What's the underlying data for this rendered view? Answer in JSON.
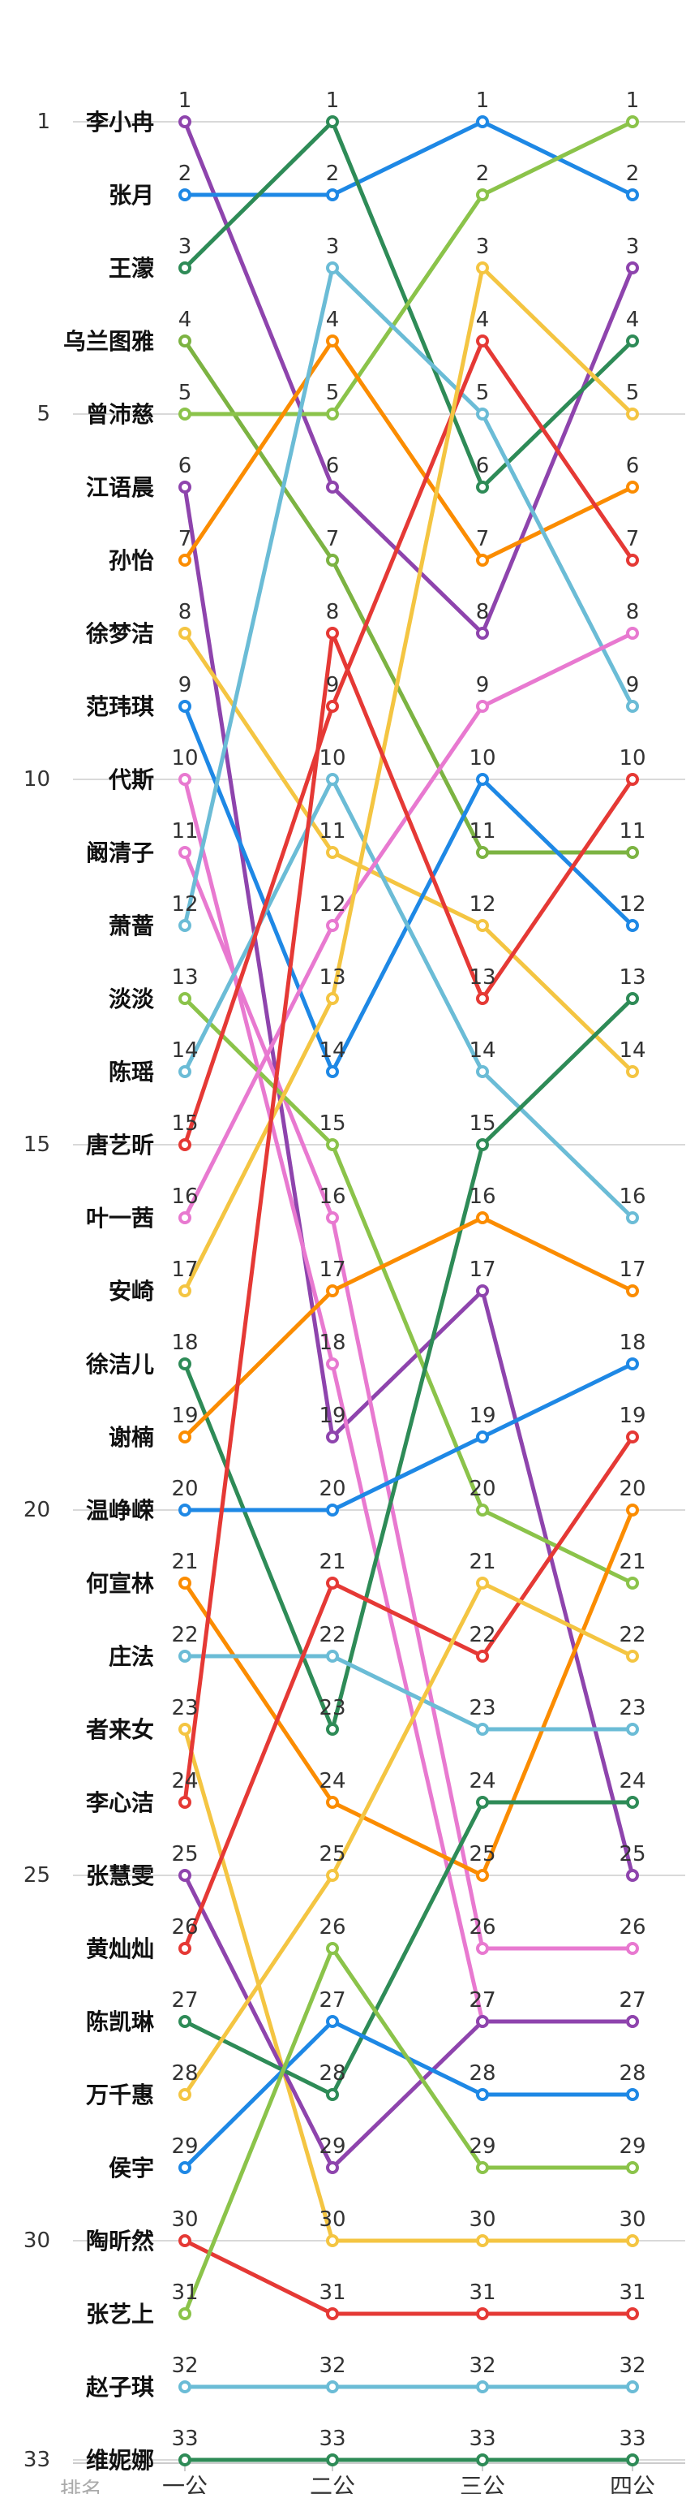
{
  "chart_data": {
    "type": "line",
    "xlabel": "排名",
    "categories": [
      "一公",
      "二公",
      "三公",
      "四公"
    ],
    "y_ticks": [
      1,
      5,
      10,
      15,
      20,
      25,
      30,
      33
    ],
    "ylim": [
      1,
      33
    ],
    "y_inverted": true,
    "grid": true,
    "palette": [
      "#1e88e5",
      "#43a047",
      "#2e8b57",
      "#8bc34a",
      "#7cb342",
      "#e53935",
      "#fb8c00",
      "#f4c542",
      "#6bbcd6",
      "#e879d0",
      "#8e44ad"
    ],
    "series": [
      {
        "name": "李小冉",
        "values": [
          1,
          6,
          8,
          3
        ],
        "color": "#8e44ad"
      },
      {
        "name": "张月",
        "values": [
          2,
          2,
          1,
          2
        ],
        "color": "#1e88e5"
      },
      {
        "name": "王濛",
        "values": [
          3,
          1,
          6,
          4
        ],
        "color": "#2e8b57"
      },
      {
        "name": "乌兰图雅",
        "values": [
          4,
          7,
          11,
          11
        ],
        "color": "#7cb342"
      },
      {
        "name": "曾沛慈",
        "values": [
          5,
          5,
          2,
          1
        ],
        "color": "#8bc34a"
      },
      {
        "name": "江语晨",
        "values": [
          6,
          19,
          17,
          25
        ],
        "color": "#8e44ad"
      },
      {
        "name": "孙怡",
        "values": [
          7,
          4,
          7,
          6
        ],
        "color": "#fb8c00"
      },
      {
        "name": "徐梦洁",
        "values": [
          8,
          11,
          12,
          14
        ],
        "color": "#f4c542"
      },
      {
        "name": "范玮琪",
        "values": [
          9,
          14,
          10,
          12
        ],
        "color": "#1e88e5"
      },
      {
        "name": "代斯",
        "values": [
          10,
          18,
          27,
          27
        ],
        "color": "#e879d0"
      },
      {
        "name": "阚清子",
        "values": [
          11,
          16,
          26,
          26
        ],
        "color": "#e879d0"
      },
      {
        "name": "萧蔷",
        "values": [
          12,
          3,
          5,
          9
        ],
        "color": "#6bbcd6"
      },
      {
        "name": "淡淡",
        "values": [
          13,
          15,
          20,
          21
        ],
        "color": "#8bc34a"
      },
      {
        "name": "陈瑶",
        "values": [
          14,
          10,
          14,
          16
        ],
        "color": "#6bbcd6"
      },
      {
        "name": "唐艺昕",
        "values": [
          15,
          9,
          4,
          7
        ],
        "color": "#e53935"
      },
      {
        "name": "叶一茜",
        "values": [
          16,
          12,
          9,
          8
        ],
        "color": "#e879d0"
      },
      {
        "name": "安崎",
        "values": [
          17,
          13,
          3,
          5
        ],
        "color": "#f4c542"
      },
      {
        "name": "徐洁儿",
        "values": [
          18,
          23,
          15,
          13
        ],
        "color": "#2e8b57"
      },
      {
        "name": "谢楠",
        "values": [
          19,
          17,
          16,
          17
        ],
        "color": "#fb8c00"
      },
      {
        "name": "温峥嵘",
        "values": [
          20,
          20,
          19,
          18
        ],
        "color": "#1e88e5"
      },
      {
        "name": "何宣林",
        "values": [
          21,
          24,
          25,
          20
        ],
        "color": "#fb8c00"
      },
      {
        "name": "庄法",
        "values": [
          22,
          22,
          23,
          23
        ],
        "color": "#6bbcd6"
      },
      {
        "name": "者来女",
        "values": [
          23,
          30,
          30,
          30
        ],
        "color": "#f4c542"
      },
      {
        "name": "李心洁",
        "values": [
          24,
          8,
          13,
          10
        ],
        "color": "#e53935"
      },
      {
        "name": "张慧雯",
        "values": [
          25,
          29,
          27,
          27
        ],
        "color": "#8e44ad"
      },
      {
        "name": "黄灿灿",
        "values": [
          26,
          21,
          22,
          19
        ],
        "color": "#e53935"
      },
      {
        "name": "陈凯琳",
        "values": [
          27,
          28,
          24,
          24
        ],
        "color": "#2e8b57"
      },
      {
        "name": "万千惠",
        "values": [
          28,
          25,
          21,
          22
        ],
        "color": "#f4c542"
      },
      {
        "name": "侯宇",
        "values": [
          29,
          27,
          28,
          28
        ],
        "color": "#1e88e5"
      },
      {
        "name": "陶昕然",
        "values": [
          30,
          31,
          31,
          31
        ],
        "color": "#e53935"
      },
      {
        "name": "张艺上",
        "values": [
          31,
          26,
          29,
          29
        ],
        "color": "#8bc34a"
      },
      {
        "name": "赵子琪",
        "values": [
          32,
          32,
          32,
          32
        ],
        "color": "#6bbcd6"
      },
      {
        "name": "维妮娜",
        "values": [
          33,
          33,
          33,
          33
        ],
        "color": "#2e8b57"
      }
    ]
  }
}
